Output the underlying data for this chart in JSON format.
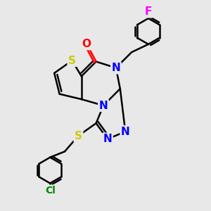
{
  "bg_color": "#e8e8e8",
  "atom_colors": {
    "S": "#cccc00",
    "N": "#0000ff",
    "O": "#ff0000",
    "F": "#ff00ff",
    "Cl": "#008800",
    "C": "#000000"
  },
  "bond_color": "#000000",
  "bond_width": 1.8,
  "font_size_atoms": 11
}
